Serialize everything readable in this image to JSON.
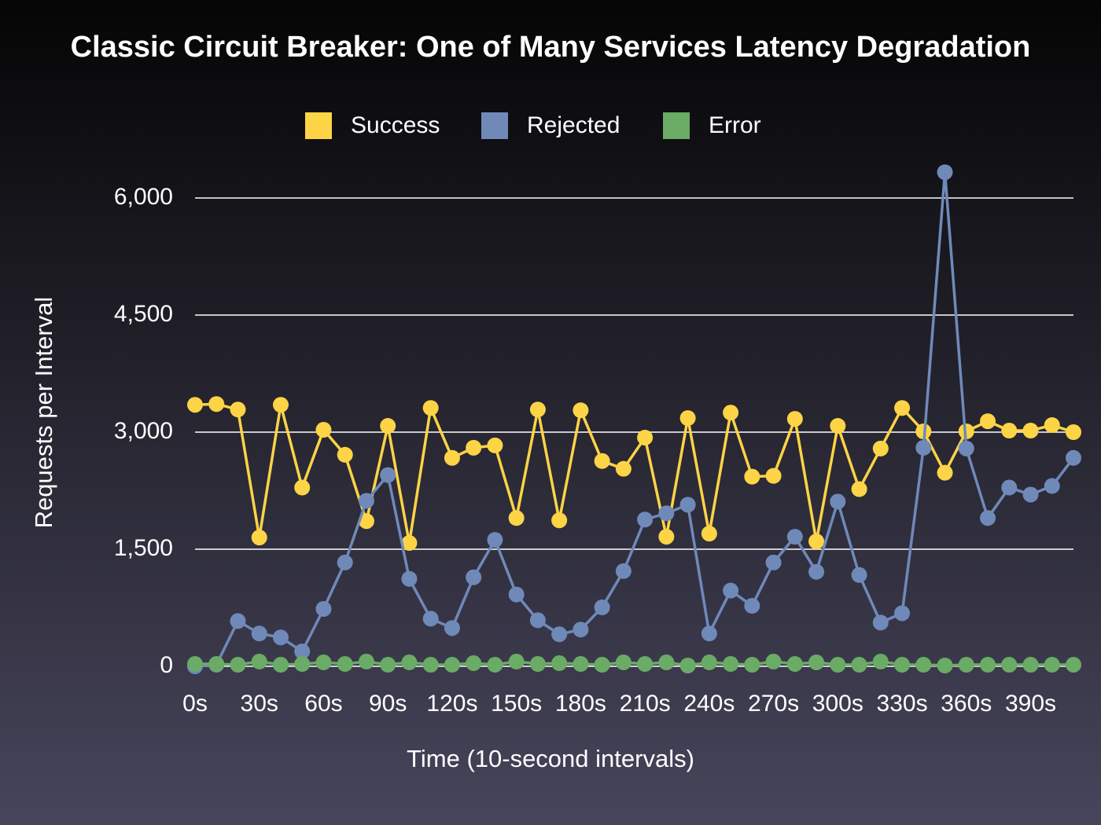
{
  "chart_data": {
    "type": "line",
    "title": "Classic Circuit Breaker: One of Many Services Latency Degradation",
    "x_label": "Time (10-second intervals)",
    "y_label": "Requests per Interval",
    "categories": [
      "0s",
      null,
      null,
      "30s",
      null,
      null,
      "60s",
      null,
      null,
      "90s",
      null,
      null,
      "120s",
      null,
      null,
      "150s",
      null,
      null,
      "180s",
      null,
      null,
      "210s",
      null,
      null,
      "240s",
      null,
      null,
      "270s",
      null,
      null,
      "300s",
      null,
      null,
      "330s",
      null,
      null,
      "360s",
      null,
      null,
      "390s",
      null,
      null
    ],
    "series": [
      {
        "name": "Success",
        "color": "#fdd446",
        "values": [
          3350,
          3360,
          3290,
          1650,
          3350,
          2290,
          3030,
          2710,
          1860,
          3080,
          1580,
          3310,
          2670,
          2800,
          2830,
          1900,
          3290,
          1870,
          3280,
          2630,
          2530,
          2930,
          1660,
          3180,
          1700,
          3250,
          2430,
          2440,
          3170,
          1600,
          3080,
          2270,
          2790,
          3310,
          3010,
          2480,
          3010,
          3140,
          3020,
          3020,
          3090,
          3000
        ]
      },
      {
        "name": "Rejected",
        "color": "#6f89b9",
        "values": [
          0,
          20,
          580,
          420,
          370,
          190,
          735,
          1330,
          2120,
          2450,
          1120,
          610,
          490,
          1140,
          1620,
          920,
          590,
          410,
          470,
          755,
          1220,
          1880,
          1960,
          2070,
          420,
          970,
          775,
          1330,
          1660,
          1210,
          2110,
          1170,
          560,
          680,
          2800,
          6330,
          2790,
          1900,
          2290,
          2200,
          2310,
          2670
        ]
      },
      {
        "name": "Error",
        "color": "#6aab66",
        "values": [
          30,
          30,
          20,
          60,
          20,
          30,
          50,
          30,
          60,
          20,
          50,
          20,
          20,
          40,
          20,
          60,
          30,
          40,
          30,
          20,
          50,
          30,
          50,
          10,
          50,
          30,
          20,
          60,
          30,
          50,
          20,
          20,
          60,
          20,
          20,
          10,
          20,
          20,
          20,
          20,
          20,
          20
        ]
      }
    ],
    "ylim": [
      0,
      6000
    ],
    "yticks": [
      0,
      {
        "value": 1500,
        "label": "1,500"
      },
      {
        "value": 3000,
        "label": "3,000"
      },
      {
        "value": 4500,
        "label": "4,500"
      },
      {
        "value": 6000,
        "label": "6,000"
      }
    ],
    "grid": true,
    "legend": "top"
  }
}
